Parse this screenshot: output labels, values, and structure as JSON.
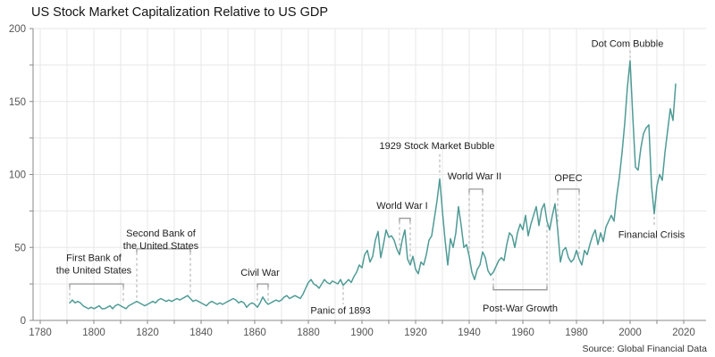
{
  "title": "US Stock Market Capitalization Relative to US GDP",
  "source": "Source: Global Financial Data",
  "chart_data": {
    "type": "line",
    "title": "US Stock Market Capitalization Relative to US GDP",
    "xlabel": "",
    "ylabel": "",
    "xlim": [
      1777,
      2028
    ],
    "ylim": [
      0,
      200
    ],
    "x_tick_labels": [
      1780,
      1800,
      1820,
      1840,
      1860,
      1880,
      1900,
      1920,
      1940,
      1960,
      1980,
      2000,
      2020
    ],
    "y_tick_labels": [
      0,
      50,
      100,
      150,
      200
    ],
    "x_grid_step": 10,
    "y_grid_step": 25,
    "grid": true,
    "legend": "none",
    "line_color": "#4f9b96",
    "grid_color": "#e7e7e7",
    "axis_color": "#888888",
    "tick_label_color": "#555555",
    "annotation_text_color": "#222222",
    "bracket_color": "#999999",
    "dash_color": "#aaaaaa",
    "series": [
      [
        1791,
        12
      ],
      [
        1792,
        14
      ],
      [
        1793,
        12
      ],
      [
        1794,
        13
      ],
      [
        1795,
        12
      ],
      [
        1796,
        10
      ],
      [
        1797,
        9
      ],
      [
        1798,
        8
      ],
      [
        1799,
        9
      ],
      [
        1800,
        8
      ],
      [
        1801,
        9
      ],
      [
        1802,
        10
      ],
      [
        1803,
        8
      ],
      [
        1804,
        8
      ],
      [
        1805,
        9
      ],
      [
        1806,
        10
      ],
      [
        1807,
        8
      ],
      [
        1808,
        10
      ],
      [
        1809,
        11
      ],
      [
        1810,
        10
      ],
      [
        1811,
        9
      ],
      [
        1812,
        8
      ],
      [
        1813,
        10
      ],
      [
        1814,
        11
      ],
      [
        1815,
        12
      ],
      [
        1816,
        13
      ],
      [
        1817,
        12
      ],
      [
        1818,
        11
      ],
      [
        1819,
        10
      ],
      [
        1820,
        11
      ],
      [
        1821,
        12
      ],
      [
        1822,
        13
      ],
      [
        1823,
        12
      ],
      [
        1824,
        14
      ],
      [
        1825,
        15
      ],
      [
        1826,
        14
      ],
      [
        1827,
        13
      ],
      [
        1828,
        14
      ],
      [
        1829,
        13
      ],
      [
        1830,
        14
      ],
      [
        1831,
        15
      ],
      [
        1832,
        14
      ],
      [
        1833,
        15
      ],
      [
        1834,
        16
      ],
      [
        1835,
        17
      ],
      [
        1836,
        15
      ],
      [
        1837,
        13
      ],
      [
        1838,
        14
      ],
      [
        1839,
        13
      ],
      [
        1840,
        12
      ],
      [
        1841,
        11
      ],
      [
        1842,
        10
      ],
      [
        1843,
        12
      ],
      [
        1844,
        13
      ],
      [
        1845,
        12
      ],
      [
        1846,
        11
      ],
      [
        1847,
        12
      ],
      [
        1848,
        11
      ],
      [
        1849,
        12
      ],
      [
        1850,
        13
      ],
      [
        1851,
        14
      ],
      [
        1852,
        15
      ],
      [
        1853,
        14
      ],
      [
        1854,
        12
      ],
      [
        1855,
        13
      ],
      [
        1856,
        12
      ],
      [
        1857,
        9
      ],
      [
        1858,
        11
      ],
      [
        1859,
        12
      ],
      [
        1860,
        11
      ],
      [
        1861,
        9
      ],
      [
        1862,
        12
      ],
      [
        1863,
        16
      ],
      [
        1864,
        13
      ],
      [
        1865,
        11
      ],
      [
        1866,
        12
      ],
      [
        1867,
        13
      ],
      [
        1868,
        14
      ],
      [
        1869,
        13
      ],
      [
        1870,
        14
      ],
      [
        1871,
        16
      ],
      [
        1872,
        17
      ],
      [
        1873,
        15
      ],
      [
        1874,
        16
      ],
      [
        1875,
        17
      ],
      [
        1876,
        16
      ],
      [
        1877,
        15
      ],
      [
        1878,
        18
      ],
      [
        1879,
        22
      ],
      [
        1880,
        26
      ],
      [
        1881,
        28
      ],
      [
        1882,
        25
      ],
      [
        1883,
        24
      ],
      [
        1884,
        22
      ],
      [
        1885,
        25
      ],
      [
        1886,
        28
      ],
      [
        1887,
        26
      ],
      [
        1888,
        25
      ],
      [
        1889,
        27
      ],
      [
        1890,
        26
      ],
      [
        1891,
        25
      ],
      [
        1892,
        28
      ],
      [
        1893,
        24
      ],
      [
        1894,
        26
      ],
      [
        1895,
        28
      ],
      [
        1896,
        26
      ],
      [
        1897,
        30
      ],
      [
        1898,
        33
      ],
      [
        1899,
        38
      ],
      [
        1900,
        36
      ],
      [
        1901,
        45
      ],
      [
        1902,
        48
      ],
      [
        1903,
        40
      ],
      [
        1904,
        44
      ],
      [
        1905,
        55
      ],
      [
        1906,
        61
      ],
      [
        1907,
        43
      ],
      [
        1908,
        52
      ],
      [
        1909,
        62
      ],
      [
        1910,
        57
      ],
      [
        1911,
        58
      ],
      [
        1912,
        55
      ],
      [
        1913,
        49
      ],
      [
        1914,
        45
      ],
      [
        1915,
        55
      ],
      [
        1916,
        62
      ],
      [
        1917,
        42
      ],
      [
        1918,
        38
      ],
      [
        1919,
        44
      ],
      [
        1920,
        35
      ],
      [
        1921,
        32
      ],
      [
        1922,
        40
      ],
      [
        1923,
        38
      ],
      [
        1924,
        45
      ],
      [
        1925,
        55
      ],
      [
        1926,
        58
      ],
      [
        1927,
        70
      ],
      [
        1928,
        82
      ],
      [
        1929,
        97
      ],
      [
        1930,
        75
      ],
      [
        1931,
        55
      ],
      [
        1932,
        38
      ],
      [
        1933,
        56
      ],
      [
        1934,
        50
      ],
      [
        1935,
        60
      ],
      [
        1936,
        78
      ],
      [
        1937,
        65
      ],
      [
        1938,
        50
      ],
      [
        1939,
        52
      ],
      [
        1940,
        44
      ],
      [
        1941,
        33
      ],
      [
        1942,
        28
      ],
      [
        1943,
        35
      ],
      [
        1944,
        38
      ],
      [
        1945,
        47
      ],
      [
        1946,
        43
      ],
      [
        1947,
        34
      ],
      [
        1948,
        31
      ],
      [
        1949,
        33
      ],
      [
        1950,
        37
      ],
      [
        1951,
        41
      ],
      [
        1952,
        43
      ],
      [
        1953,
        41
      ],
      [
        1954,
        52
      ],
      [
        1955,
        60
      ],
      [
        1956,
        58
      ],
      [
        1957,
        50
      ],
      [
        1958,
        60
      ],
      [
        1959,
        66
      ],
      [
        1960,
        62
      ],
      [
        1961,
        72
      ],
      [
        1962,
        58
      ],
      [
        1963,
        66
      ],
      [
        1964,
        72
      ],
      [
        1965,
        78
      ],
      [
        1966,
        65
      ],
      [
        1967,
        76
      ],
      [
        1968,
        80
      ],
      [
        1969,
        68
      ],
      [
        1970,
        62
      ],
      [
        1971,
        72
      ],
      [
        1972,
        80
      ],
      [
        1973,
        62
      ],
      [
        1974,
        40
      ],
      [
        1975,
        48
      ],
      [
        1976,
        50
      ],
      [
        1977,
        43
      ],
      [
        1978,
        40
      ],
      [
        1979,
        42
      ],
      [
        1980,
        48
      ],
      [
        1981,
        42
      ],
      [
        1982,
        38
      ],
      [
        1983,
        48
      ],
      [
        1984,
        45
      ],
      [
        1985,
        52
      ],
      [
        1986,
        58
      ],
      [
        1987,
        62
      ],
      [
        1988,
        52
      ],
      [
        1989,
        60
      ],
      [
        1990,
        54
      ],
      [
        1991,
        64
      ],
      [
        1992,
        68
      ],
      [
        1993,
        72
      ],
      [
        1994,
        68
      ],
      [
        1995,
        85
      ],
      [
        1996,
        98
      ],
      [
        1997,
        115
      ],
      [
        1998,
        135
      ],
      [
        1999,
        160
      ],
      [
        2000,
        178
      ],
      [
        2001,
        140
      ],
      [
        2002,
        105
      ],
      [
        2003,
        103
      ],
      [
        2004,
        118
      ],
      [
        2005,
        128
      ],
      [
        2006,
        132
      ],
      [
        2007,
        134
      ],
      [
        2008,
        92
      ],
      [
        2009,
        73
      ],
      [
        2010,
        92
      ],
      [
        2011,
        100
      ],
      [
        2012,
        96
      ],
      [
        2013,
        115
      ],
      [
        2014,
        130
      ],
      [
        2015,
        145
      ],
      [
        2016,
        137
      ],
      [
        2017,
        162
      ]
    ],
    "annotations": [
      {
        "id": "first-bank",
        "type": "bracket",
        "label": [
          "First Bank of",
          "the United States"
        ],
        "x1": 1791,
        "x2": 1811,
        "bar_y": 25,
        "label_x": 1800,
        "label_y": 43
      },
      {
        "id": "second-bank",
        "type": "bracket",
        "label": [
          "Second Bank of",
          "the United States"
        ],
        "x1": 1816,
        "x2": 1836,
        "bar_y": 49,
        "label_x": 1825,
        "label_y": 60
      },
      {
        "id": "civil-war",
        "type": "bracket",
        "label": [
          "Civil War"
        ],
        "x1": 1861,
        "x2": 1865,
        "bar_y": 25,
        "label_x": 1862,
        "label_y": 33
      },
      {
        "id": "panic-1893",
        "type": "vline",
        "label": [
          "Panic of 1893"
        ],
        "x": 1893,
        "y1": 23,
        "y2": 11,
        "label_x": 1892,
        "label_y": 7
      },
      {
        "id": "world-war-1",
        "type": "bracket",
        "label": [
          "World War I"
        ],
        "x1": 1914,
        "x2": 1918,
        "bar_y": 70,
        "label_x": 1915,
        "label_y": 79
      },
      {
        "id": "bubble-1929",
        "type": "vline",
        "label": [
          "1929 Stock Market Bubble"
        ],
        "x": 1929,
        "y1": 114,
        "y2": 99,
        "label_x": 1928,
        "label_y": 120
      },
      {
        "id": "world-war-2",
        "type": "bracket",
        "label": [
          "World War II"
        ],
        "x1": 1940,
        "x2": 1945,
        "bar_y": 90,
        "label_x": 1942,
        "label_y": 99
      },
      {
        "id": "post-war-growth",
        "type": "bracket-below",
        "label": [
          "Post-War Growth"
        ],
        "x1": 1949,
        "x2": 1969,
        "bar_y": 21,
        "label_x": 1959,
        "label_y": 8.5
      },
      {
        "id": "opec",
        "type": "bracket",
        "label": [
          "OPEC"
        ],
        "x1": 1973,
        "x2": 1981,
        "bar_y": 90,
        "label_x": 1977,
        "label_y": 98
      },
      {
        "id": "dot-com-bubble",
        "type": "vline",
        "label": [
          "Dot Com Bubble"
        ],
        "x": 2000,
        "y1": 185,
        "y2": 180,
        "label_x": 1999,
        "label_y": 190
      },
      {
        "id": "financial-crisis",
        "type": "vline",
        "label": [
          "Financial Crisis"
        ],
        "x": 2009,
        "y1": 71,
        "y2": 64,
        "label_x": 2008,
        "label_y": 59
      }
    ]
  }
}
